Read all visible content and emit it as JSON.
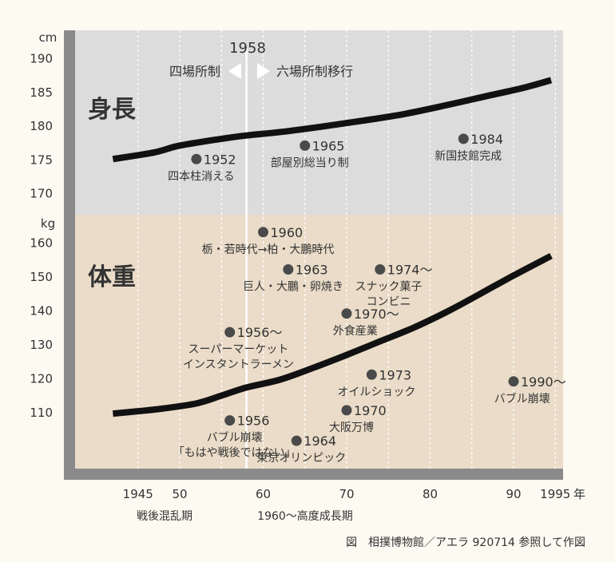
{
  "chart_data": [
    {
      "type": "line",
      "title": "身長",
      "ylabel": "cm",
      "ylim": [
        165,
        192
      ],
      "xlim": [
        1940,
        1997
      ],
      "yticks": [
        190,
        185,
        180,
        175,
        170
      ],
      "series": [
        {
          "x": [
            1942,
            1947,
            1950,
            1955,
            1958,
            1962,
            1967,
            1972,
            1977,
            1982,
            1987,
            1991,
            1994.5
          ],
          "values": [
            175.0,
            176.0,
            177.0,
            178.0,
            178.5,
            179.0,
            179.8,
            180.7,
            181.7,
            183.0,
            184.4,
            185.5,
            186.7
          ]
        }
      ],
      "annotations": [
        {
          "year": 1952,
          "value": 175,
          "label": "1952",
          "note": "四本柱消える"
        },
        {
          "year": 1965,
          "value": 177,
          "label": "1965",
          "note": "部屋別総当り制"
        },
        {
          "year": 1984,
          "value": 178,
          "label": "1984",
          "note": "新国技館完成"
        }
      ],
      "color": "#111111",
      "background": "#dcdcdc"
    },
    {
      "type": "line",
      "title": "体重",
      "ylabel": "kg",
      "ylim": [
        95,
        164
      ],
      "xlim": [
        1940,
        1997
      ],
      "yticks": [
        160,
        150,
        140,
        130,
        120,
        110
      ],
      "series": [
        {
          "x": [
            1942,
            1945,
            1948,
            1952,
            1955,
            1958,
            1962,
            1966,
            1970,
            1974,
            1978,
            1982,
            1986,
            1990,
            1994.5
          ],
          "values": [
            109.5,
            110.2,
            111.0,
            112.5,
            114.8,
            117.2,
            119.5,
            123.0,
            126.8,
            130.8,
            134.8,
            139.5,
            144.8,
            150.2,
            156.0
          ]
        }
      ],
      "annotations": [
        {
          "year": 1960,
          "value": 163,
          "label": "1960",
          "note": "栃・若時代→柏・大鵬時代"
        },
        {
          "year": 1963,
          "value": 152,
          "label": "1963",
          "note": "巨人・大鵬・卵焼き"
        },
        {
          "year": 1974,
          "value": 152,
          "label": "1974〜",
          "note": "スナック菓子\nコンビニ"
        },
        {
          "year": 1970,
          "value": 139,
          "label": "1970〜",
          "note": "外食産業"
        },
        {
          "year": 1956,
          "value": 133.5,
          "label": "1956〜",
          "note": "スーパーマーケット\nインスタントラーメン"
        },
        {
          "year": 1973,
          "value": 121,
          "label": "1973",
          "note": "オイルショック"
        },
        {
          "year": 1990,
          "value": 119,
          "label": "1990〜",
          "note": "バブル崩壊"
        },
        {
          "year": 1970,
          "value": 110.5,
          "label": "1970",
          "note": "大阪万博"
        },
        {
          "year": 1956,
          "value": 107.5,
          "label": "1956",
          "note": "バブル崩壊\n「もはや戦後ではない」"
        },
        {
          "year": 1964,
          "value": 101.5,
          "label": "1964",
          "note": "東京オリンピック"
        }
      ],
      "color": "#111111",
      "background": "#eadcc8"
    }
  ],
  "x_axis": {
    "ticks": [
      {
        "year": 1945,
        "label": "1945"
      },
      {
        "year": 1950,
        "label": "50"
      },
      {
        "year": 1960,
        "label": "60"
      },
      {
        "year": 1970,
        "label": "70"
      },
      {
        "year": 1980,
        "label": "80"
      },
      {
        "year": 1990,
        "label": "90"
      },
      {
        "year": 1995,
        "label": "1995"
      }
    ],
    "unit": "年",
    "periods": [
      "戦後混乱期",
      "1960〜高度成長期"
    ]
  },
  "divider": {
    "year": 1958,
    "label": "1958",
    "left": "四場所制",
    "right": "六場所制移行"
  },
  "caption": "図　相撲博物館／アエラ 920714 参照して作図"
}
